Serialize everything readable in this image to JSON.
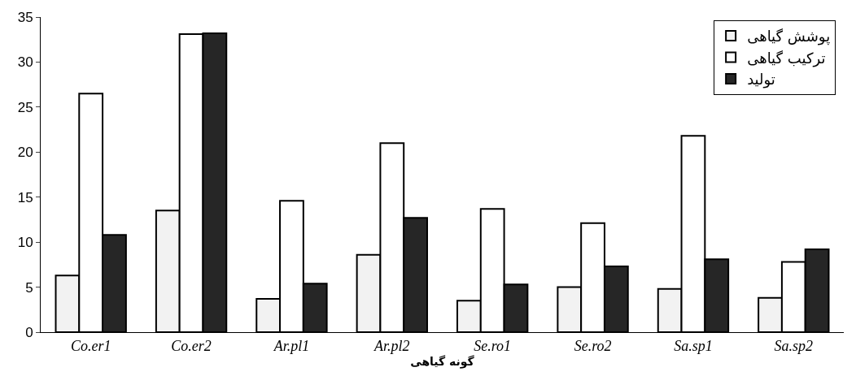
{
  "chart_data": {
    "type": "bar",
    "xlabel": "گونه گیاهی",
    "categories": [
      "Co.er1",
      "Co.er2",
      "Ar.pl1",
      "Ar.pl2",
      "Se.ro1",
      "Se.ro2",
      "Sa.sp1",
      "Sa.sp2"
    ],
    "series": [
      {
        "name": "پوشش گیاهی",
        "color": "#f2f2f2",
        "values": [
          6.3,
          13.5,
          3.7,
          8.6,
          3.5,
          5.0,
          4.8,
          3.8
        ]
      },
      {
        "name": "ترکیب گیاهی",
        "color": "#ffffff",
        "values": [
          26.5,
          33.1,
          14.6,
          21.0,
          13.7,
          12.1,
          21.8,
          7.8
        ]
      },
      {
        "name": "تولید",
        "color": "#262626",
        "values": [
          10.8,
          33.2,
          5.4,
          12.7,
          5.3,
          7.3,
          8.1,
          9.2
        ]
      }
    ],
    "ylim": [
      0,
      35
    ],
    "yticks": [
      0,
      5,
      10,
      15,
      20,
      25,
      30,
      35
    ],
    "legend": "top right"
  }
}
